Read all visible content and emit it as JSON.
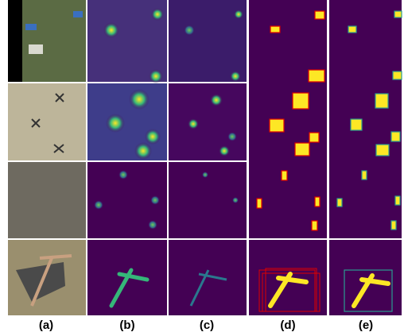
{
  "labels": [
    "(a)",
    "(b)",
    "(c)",
    "(d)",
    "(e)"
  ]
}
